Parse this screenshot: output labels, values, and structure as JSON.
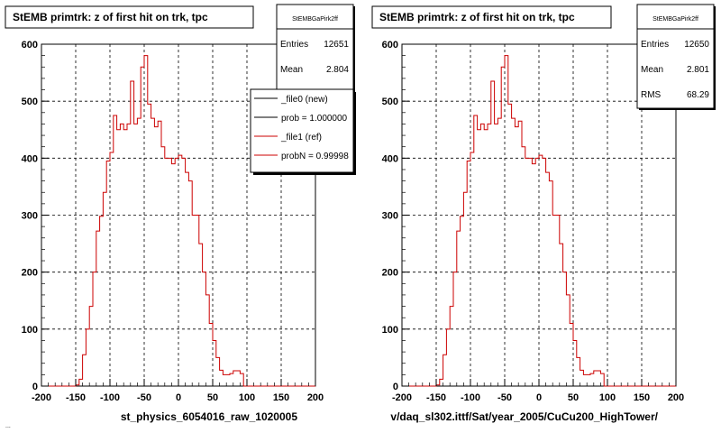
{
  "colors": {
    "background": "#ffffff",
    "hist_line": "#cc0000",
    "grid": "#000000",
    "ref_line": "#cc0000",
    "new_line": "#000000"
  },
  "chart_data": [
    {
      "type": "histogram",
      "title": "StEMB primtrk: z of first hit on trk, tpc",
      "xlabel": "st_physics_6054016_raw_1020005",
      "ylabel": "",
      "xlim": [
        -200,
        200
      ],
      "ylim": [
        0,
        600
      ],
      "xticks": [
        "-200",
        "-150",
        "-100",
        "-50",
        "0",
        "50",
        "100",
        "150",
        "200"
      ],
      "yticks": [
        "0",
        "100",
        "200",
        "300",
        "400",
        "500",
        "600"
      ],
      "grid": true,
      "bin_edges": [
        -200,
        -190,
        -180,
        -170,
        -160,
        -150,
        -145,
        -140,
        -135,
        -130,
        -125,
        -120,
        -115,
        -110,
        -105,
        -100,
        -95,
        -90,
        -85,
        -80,
        -75,
        -70,
        -65,
        -60,
        -55,
        -50,
        -45,
        -40,
        -35,
        -30,
        -25,
        -20,
        -15,
        -10,
        -5,
        0,
        5,
        10,
        15,
        20,
        25,
        30,
        35,
        40,
        45,
        50,
        55,
        60,
        65,
        70,
        75,
        80,
        85,
        90,
        95,
        100,
        105,
        110,
        115,
        120,
        125,
        130,
        135,
        140,
        145,
        150,
        155,
        160,
        165,
        170,
        175,
        180,
        185,
        190,
        195,
        200
      ],
      "values": [
        0,
        0,
        0,
        0,
        0,
        2,
        12,
        55,
        100,
        140,
        200,
        272,
        298,
        340,
        395,
        410,
        475,
        450,
        460,
        450,
        460,
        535,
        460,
        470,
        560,
        580,
        495,
        470,
        455,
        465,
        420,
        400,
        400,
        390,
        400,
        405,
        400,
        375,
        360,
        300,
        300,
        250,
        200,
        160,
        110,
        80,
        50,
        28,
        20,
        20,
        22,
        27,
        27,
        22,
        0,
        0,
        0,
        0,
        0,
        0,
        0,
        0,
        0,
        0,
        0,
        0,
        0,
        0,
        0,
        0,
        0,
        0,
        0,
        0,
        0
      ],
      "stats_box": {
        "name": "StEMBGaPirk2ff",
        "entries_label": "Entries",
        "entries_value": "12651",
        "mean_label": "Mean",
        "mean_value": "2.804"
      },
      "legend": {
        "placement": "top-right",
        "entries": [
          {
            "label": "_file0 (new)",
            "color": "#000000"
          },
          {
            "label": "prob = 1.000000",
            "color": "#000000"
          },
          {
            "label": "_file1 (ref)",
            "color": "#cc0000"
          },
          {
            "label": "probN = 0.99998",
            "color": "#cc0000"
          }
        ]
      }
    },
    {
      "type": "histogram",
      "title": "StEMB primtrk: z of first hit on trk, tpc",
      "xlabel": "v/daq_sl302.ittf/Sat/year_2005/CuCu200_HighTower/",
      "ylabel": "",
      "xlim": [
        -200,
        200
      ],
      "ylim": [
        0,
        600
      ],
      "xticks": [
        "-200",
        "-150",
        "-100",
        "-50",
        "0",
        "50",
        "100",
        "150",
        "200"
      ],
      "yticks": [
        "0",
        "100",
        "200",
        "300",
        "400",
        "500",
        "600"
      ],
      "grid": true,
      "stats_box": {
        "name": "StEMBGaPirk2ff",
        "entries_label": "Entries",
        "entries_value": "12650",
        "mean_label": "Mean",
        "mean_value": "2.801",
        "rms_label": "RMS",
        "rms_value": "68.29"
      }
    }
  ],
  "footer_fragment": "..."
}
